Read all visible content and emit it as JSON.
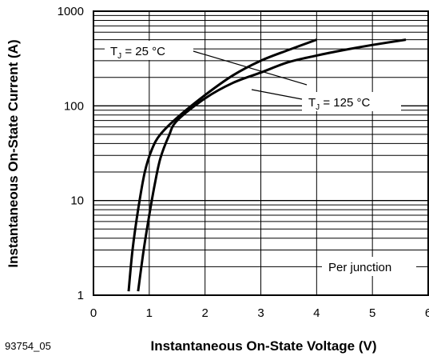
{
  "chart_data": {
    "type": "line",
    "title": "",
    "xlabel": "Instantaneous On-State Voltage (V)",
    "ylabel": "Instantaneous On-State Current (A)",
    "xlim": [
      0,
      6
    ],
    "ylim": [
      1,
      1000
    ],
    "yscale": "log",
    "grid": true,
    "x_ticks": [
      "0",
      "1",
      "2",
      "3",
      "4",
      "5",
      "6"
    ],
    "y_ticks": [
      "1",
      "10",
      "100",
      "1000"
    ],
    "series": [
      {
        "name": "TJ = 25 °C",
        "x": [
          0.63,
          0.7,
          0.8,
          0.92,
          1.05,
          1.2,
          1.5,
          2.0,
          2.5,
          3.0,
          3.5,
          4.0
        ],
        "y": [
          1.1,
          3,
          8,
          20,
          35,
          50,
          75,
          130,
          210,
          300,
          390,
          500
        ]
      },
      {
        "name": "TJ = 125 °C",
        "x": [
          0.8,
          0.9,
          1.0,
          1.1,
          1.2,
          1.35,
          1.5,
          2.0,
          2.5,
          3.0,
          3.5,
          4.0,
          4.5,
          5.0,
          5.6
        ],
        "y": [
          1.1,
          3,
          7,
          15,
          28,
          48,
          70,
          120,
          175,
          225,
          290,
          340,
          390,
          440,
          500
        ]
      }
    ],
    "annotations": [
      {
        "sub": "J",
        "label_prefix": "T",
        "label_suffix": " = 25 °C"
      },
      {
        "sub": "J",
        "label_prefix": "T",
        "label_suffix": " = 125 °C"
      },
      {
        "label": "Per junction"
      }
    ],
    "figure_id": "93754_05"
  }
}
